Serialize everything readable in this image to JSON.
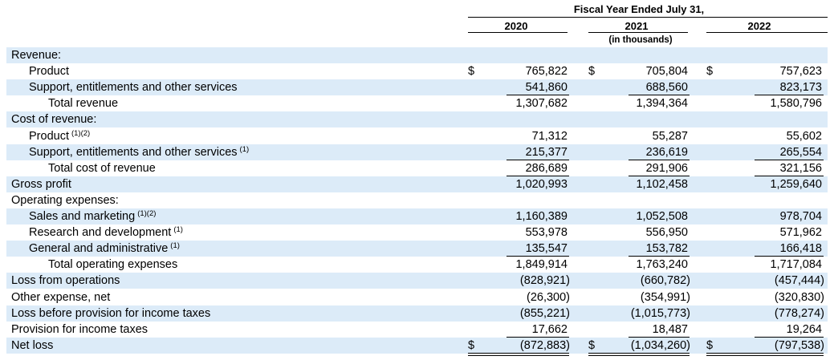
{
  "header": {
    "period_title": "Fiscal Year Ended July 31,",
    "years": [
      "2020",
      "2021",
      "2022"
    ],
    "units": "(in thousands)"
  },
  "rows": [
    {
      "label": "Revenue:",
      "note": "",
      "values": [
        "",
        "",
        ""
      ]
    },
    {
      "label": "Product",
      "note": "",
      "dollar": true,
      "values": [
        "765,822",
        "705,804",
        "757,623"
      ]
    },
    {
      "label": "Support, entitlements and other services",
      "note": "",
      "values": [
        "541,860",
        "688,560",
        "823,173"
      ]
    },
    {
      "label": "Total revenue",
      "note": "",
      "values": [
        "1,307,682",
        "1,394,364",
        "1,580,796"
      ]
    },
    {
      "label": "Cost of revenue:",
      "note": "",
      "values": [
        "",
        "",
        ""
      ]
    },
    {
      "label": "Product",
      "note": "(1)(2)",
      "values": [
        "71,312",
        "55,287",
        "55,602"
      ]
    },
    {
      "label": "Support, entitlements and other services",
      "note": "(1)",
      "values": [
        "215,377",
        "236,619",
        "265,554"
      ]
    },
    {
      "label": "Total cost of revenue",
      "note": "",
      "values": [
        "286,689",
        "291,906",
        "321,156"
      ]
    },
    {
      "label": "Gross profit",
      "note": "",
      "values": [
        "1,020,993",
        "1,102,458",
        "1,259,640"
      ]
    },
    {
      "label": "Operating expenses:",
      "note": "",
      "values": [
        "",
        "",
        ""
      ]
    },
    {
      "label": "Sales and marketing",
      "note": "(1)(2)",
      "values": [
        "1,160,389",
        "1,052,508",
        "978,704"
      ]
    },
    {
      "label": "Research and development",
      "note": "(1)",
      "values": [
        "553,978",
        "556,950",
        "571,962"
      ]
    },
    {
      "label": "General and administrative",
      "note": "(1)",
      "values": [
        "135,547",
        "153,782",
        "166,418"
      ]
    },
    {
      "label": "Total operating expenses",
      "note": "",
      "values": [
        "1,849,914",
        "1,763,240",
        "1,717,084"
      ]
    },
    {
      "label": "Loss from operations",
      "note": "",
      "values": [
        "(828,921)",
        "(660,782)",
        "(457,444)"
      ]
    },
    {
      "label": "Other expense, net",
      "note": "",
      "values": [
        "(26,300)",
        "(354,991)",
        "(320,830)"
      ]
    },
    {
      "label": "Loss before provision for income taxes",
      "note": "",
      "values": [
        "(855,221)",
        "(1,015,773)",
        "(778,274)"
      ]
    },
    {
      "label": "Provision for income taxes",
      "note": "",
      "values": [
        "17,662",
        "18,487",
        "19,264"
      ]
    },
    {
      "label": "Net loss",
      "note": "",
      "dollar": true,
      "values": [
        "(872,883)",
        "(1,034,260)",
        "(797,538)"
      ]
    }
  ],
  "currency_symbol": "$"
}
